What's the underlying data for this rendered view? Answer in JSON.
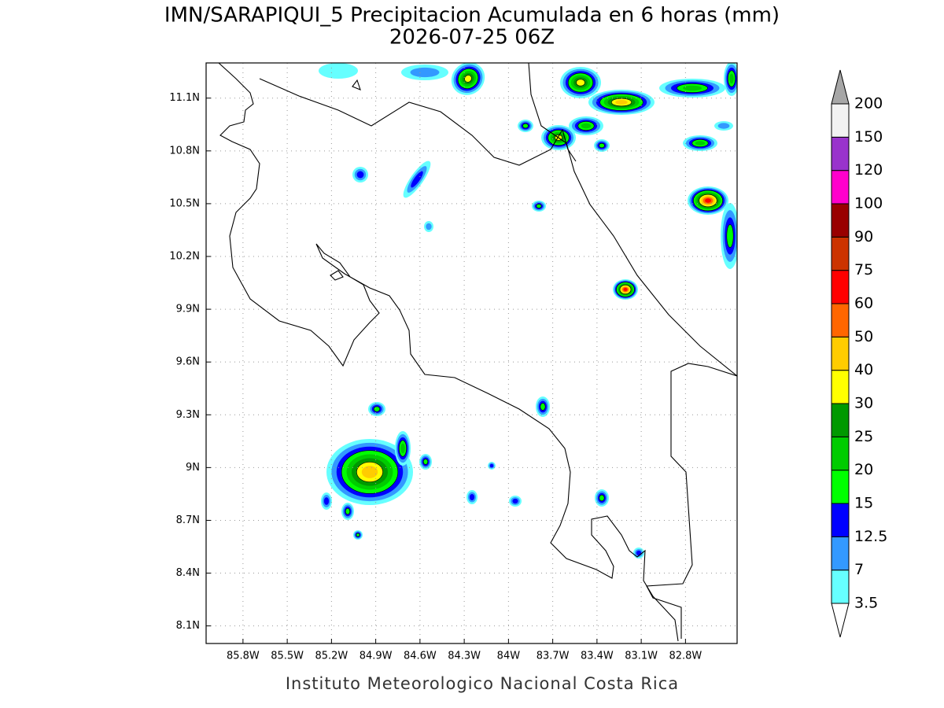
{
  "map": {
    "title": "IMN/SARAPIQUI_5 Precipitacion Acumulada en 6 horas (mm)",
    "subtitle": "2026-07-25 06Z",
    "footer": "Instituto Meteorologico Nacional Costa Rica",
    "xlim": [
      -86.05,
      -82.45
    ],
    "ylim": [
      8.0,
      11.3
    ],
    "grid": true,
    "xticks": [
      {
        "value": -85.8,
        "label": "85.8W"
      },
      {
        "value": -85.5,
        "label": "85.5W"
      },
      {
        "value": -85.2,
        "label": "85.2W"
      },
      {
        "value": -84.9,
        "label": "84.9W"
      },
      {
        "value": -84.6,
        "label": "84.6W"
      },
      {
        "value": -84.3,
        "label": "84.3W"
      },
      {
        "value": -84.0,
        "label": "84W"
      },
      {
        "value": -83.7,
        "label": "83.7W"
      },
      {
        "value": -83.4,
        "label": "83.4W"
      },
      {
        "value": -83.1,
        "label": "83.1W"
      },
      {
        "value": -82.8,
        "label": "82.8W"
      }
    ],
    "yticks": [
      {
        "value": 8.1,
        "label": "8.1N"
      },
      {
        "value": 8.4,
        "label": "8.4N"
      },
      {
        "value": 8.7,
        "label": "8.7N"
      },
      {
        "value": 9.0,
        "label": "9N"
      },
      {
        "value": 9.3,
        "label": "9.3N"
      },
      {
        "value": 9.6,
        "label": "9.6N"
      },
      {
        "value": 9.9,
        "label": "9.9N"
      },
      {
        "value": 10.2,
        "label": "10.2N"
      },
      {
        "value": 10.5,
        "label": "10.5N"
      },
      {
        "value": 10.8,
        "label": "10.8N"
      },
      {
        "value": 11.1,
        "label": "11.1N"
      }
    ],
    "colorbar": {
      "levels": [
        3.5,
        7,
        12.5,
        15,
        20,
        25,
        30,
        40,
        50,
        60,
        75,
        90,
        100,
        120,
        150,
        200
      ],
      "colors": [
        "#66ffff",
        "#3399ff",
        "#0000ff",
        "#00ff00",
        "#00cc00",
        "#009900",
        "#ffff00",
        "#ffcc00",
        "#ff6600",
        "#ff0000",
        "#cc3300",
        "#990000",
        "#ff00cc",
        "#9933cc",
        "#f2f2f2"
      ],
      "under_color": "#ffffff",
      "over_color": "#a6a6a6"
    }
  }
}
